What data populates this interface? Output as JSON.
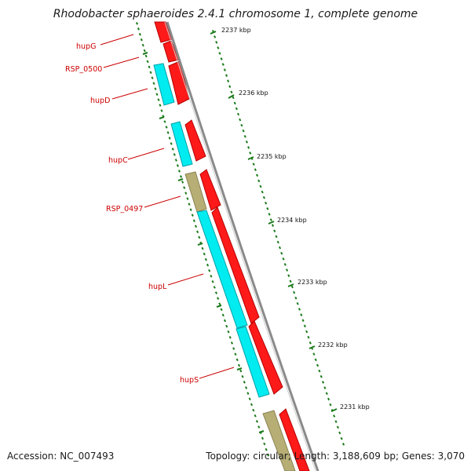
{
  "title": "Rhodobacter sphaeroides 2.4.1 chromosome 1, complete genome",
  "footer": {
    "accession_label": "Accession:",
    "accession": "NC_007493",
    "topology_label": "Topology:",
    "topology": "circular",
    "length_label": "Length:",
    "length": "3,188,609 bp",
    "genes_label": "Genes:",
    "genes": "3,070"
  },
  "colors": {
    "forward_cds": "#ff1a1a",
    "reverse_cds": "#00ecf0",
    "other_feature": "#b7ae76",
    "backbone": "#8a8a8a",
    "tick": "#1a7a1a",
    "gene_label": "#cc0000"
  },
  "scale_ticks": [
    {
      "label": "2237 kbp"
    },
    {
      "label": "2236 kbp"
    },
    {
      "label": "2235 kbp"
    },
    {
      "label": "2234 kbp"
    },
    {
      "label": "2233 kbp"
    },
    {
      "label": "2232 kbp"
    },
    {
      "label": "2231 kbp"
    }
  ],
  "gene_labels": [
    {
      "name": "hupG"
    },
    {
      "name": "RSP_0500"
    },
    {
      "name": "hupD"
    },
    {
      "name": "hupC"
    },
    {
      "name": "RSP_0497"
    },
    {
      "name": "hupL"
    },
    {
      "name": "hupS"
    }
  ]
}
